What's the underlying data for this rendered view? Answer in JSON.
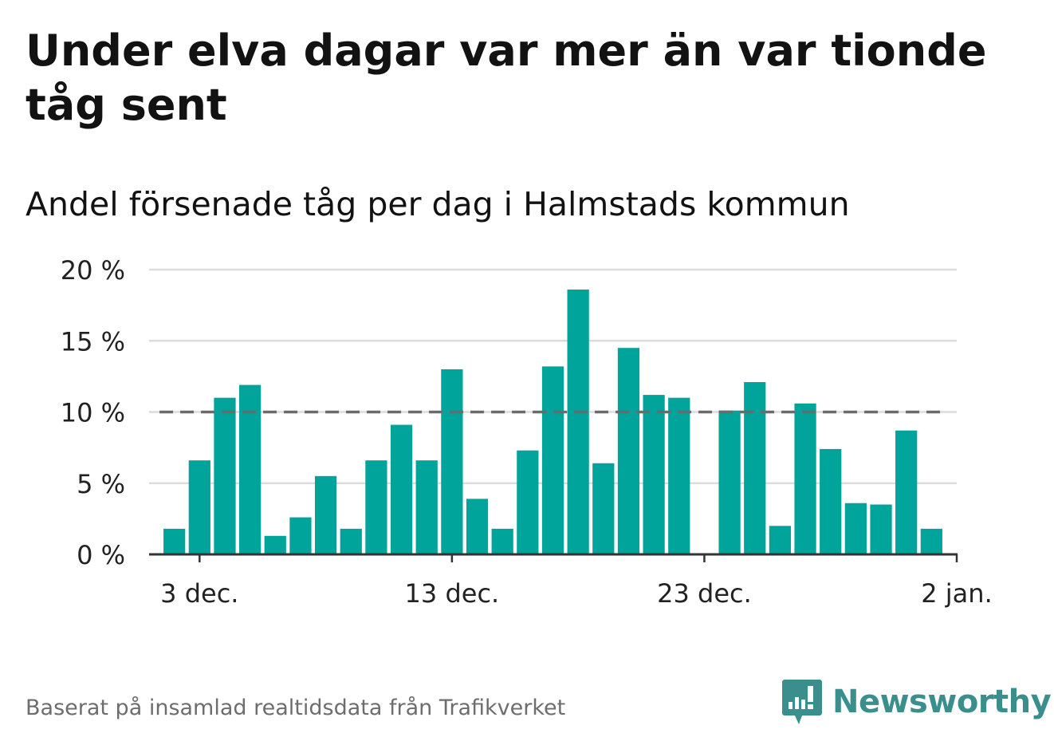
{
  "title": "Under elva dagar var mer än var tionde tåg sent",
  "subtitle": "Andel försenade tåg per dag i Halmstads kommun",
  "source": "Baserat på insamlad realtidsdata från Trafikverket",
  "brand": {
    "name": "Newsworthy",
    "icon": "newsworthy-logo-icon",
    "color": "#3a8f8c"
  },
  "colors": {
    "bar": "#00a49a",
    "reference_line": "#6b6b6b",
    "grid": "#dcdcdc",
    "axis": "#333333"
  },
  "chart_data": {
    "type": "bar",
    "x": [
      "2023-12-02",
      "2023-12-03",
      "2023-12-04",
      "2023-12-05",
      "2023-12-06",
      "2023-12-07",
      "2023-12-08",
      "2023-12-09",
      "2023-12-10",
      "2023-12-11",
      "2023-12-12",
      "2023-12-13",
      "2023-12-14",
      "2023-12-15",
      "2023-12-16",
      "2023-12-17",
      "2023-12-18",
      "2023-12-19",
      "2023-12-20",
      "2023-12-21",
      "2023-12-22",
      "2023-12-23",
      "2023-12-24",
      "2023-12-25",
      "2023-12-26",
      "2023-12-27",
      "2023-12-28",
      "2023-12-29",
      "2023-12-30",
      "2023-12-31",
      "2024-01-01"
    ],
    "values": [
      1.8,
      6.6,
      11.0,
      11.9,
      1.3,
      2.6,
      5.5,
      1.8,
      6.6,
      9.1,
      6.6,
      13.0,
      3.9,
      1.8,
      7.3,
      13.2,
      18.6,
      6.4,
      14.5,
      11.2,
      11.0,
      null,
      10.1,
      12.1,
      2.0,
      10.6,
      7.4,
      3.6,
      3.5,
      8.7,
      1.8
    ],
    "reference_line": 10,
    "xlim": [
      "2023-12-01",
      "2024-01-02"
    ],
    "ylim": [
      0,
      20
    ],
    "y_ticks": [
      0,
      5,
      10,
      15,
      20
    ],
    "y_tick_labels": [
      "0 %",
      "5 %",
      "10 %",
      "15 %",
      "20 %"
    ],
    "x_ticks": [
      "2023-12-03",
      "2023-12-13",
      "2023-12-23",
      "2024-01-02"
    ],
    "x_tick_labels": [
      "3 dec.",
      "13 dec.",
      "23 dec.",
      "2 jan."
    ],
    "grid": true,
    "xlabel": "",
    "ylabel": ""
  }
}
